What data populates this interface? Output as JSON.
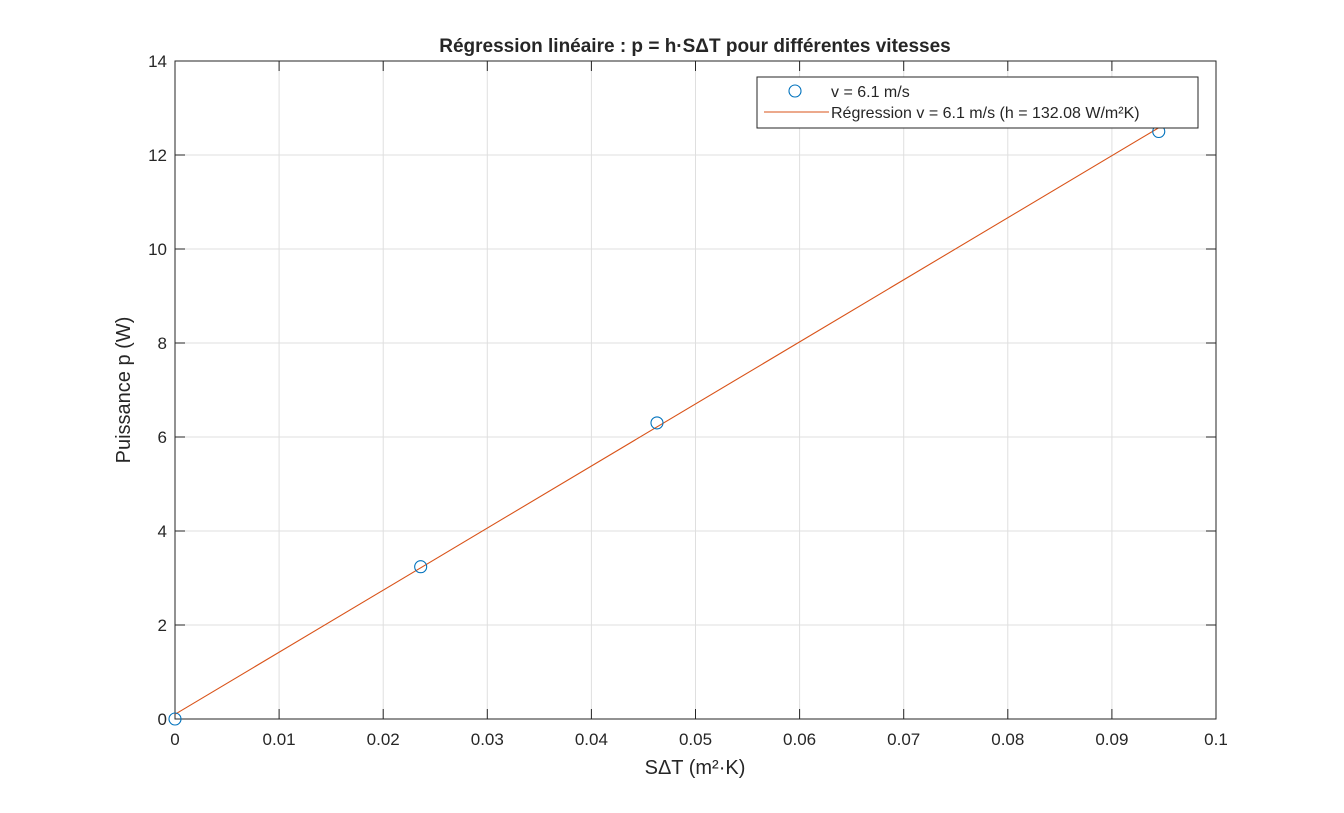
{
  "chart_data": {
    "type": "scatter",
    "title": "Régression linéaire : p = h·SΔT pour différentes vitesses",
    "xlabel": "SΔT (m²·K)",
    "ylabel": "Puissance p (W)",
    "xlim": [
      0,
      0.1
    ],
    "ylim": [
      0,
      14
    ],
    "xticks": [
      "0",
      "0.01",
      "0.02",
      "0.03",
      "0.04",
      "0.05",
      "0.06",
      "0.07",
      "0.08",
      "0.09",
      "0.1"
    ],
    "yticks": [
      "0",
      "2",
      "4",
      "6",
      "8",
      "10",
      "12",
      "14"
    ],
    "grid": true,
    "legend_position": "top-right",
    "series": [
      {
        "name": "v = 6.1 m/s",
        "kind": "markers",
        "marker": "circle",
        "color": "#0072BD",
        "x": [
          0,
          0.0236,
          0.0463,
          0.0945
        ],
        "y": [
          0,
          3.24,
          6.3,
          12.5
        ]
      },
      {
        "name": "Régression v = 6.1 m/s (h = 132.08 W/m²K)",
        "kind": "line",
        "color": "#D95319",
        "x": [
          0,
          0.0945
        ],
        "y": [
          0.1,
          12.58
        ]
      }
    ]
  }
}
